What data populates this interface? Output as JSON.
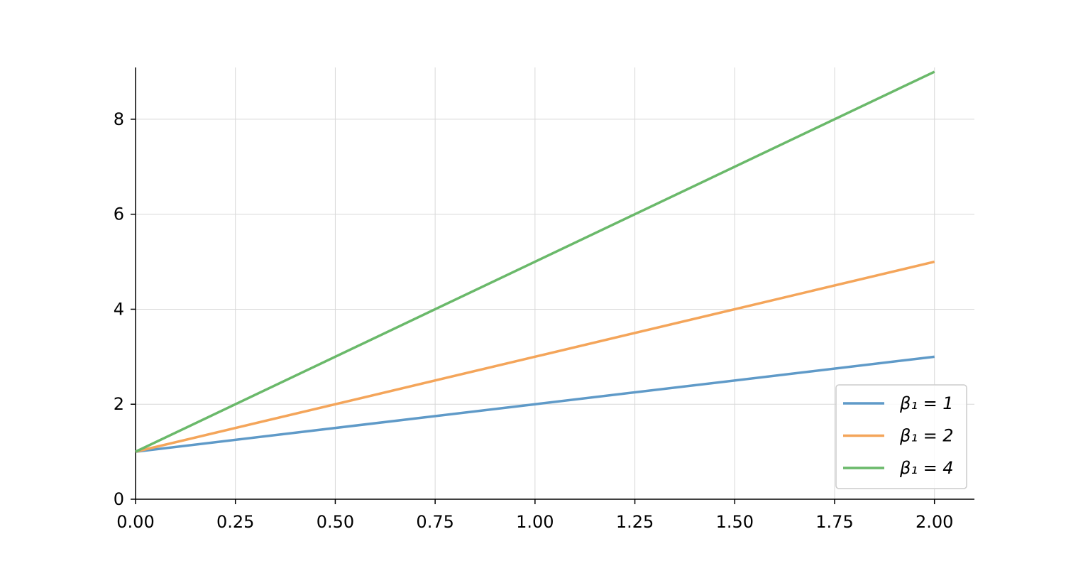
{
  "chart_data": {
    "type": "line",
    "x": [
      0,
      1,
      2
    ],
    "series": [
      {
        "name": "β₁ = 1",
        "color": "#5f9ac8",
        "values": [
          1,
          2,
          3
        ]
      },
      {
        "name": "β₁ = 2",
        "color": "#f4a55a",
        "values": [
          1,
          3,
          5
        ]
      },
      {
        "name": "β₁ = 4",
        "color": "#6ab96a",
        "values": [
          1,
          5,
          9
        ]
      }
    ],
    "xlim": [
      0,
      2.1
    ],
    "ylim": [
      0,
      9.09
    ],
    "xticks": [
      {
        "value": 0,
        "label": "0.00"
      },
      {
        "value": 0.25,
        "label": "0.25"
      },
      {
        "value": 0.5,
        "label": "0.50"
      },
      {
        "value": 0.75,
        "label": "0.75"
      },
      {
        "value": 1,
        "label": "1.00"
      },
      {
        "value": 1.25,
        "label": "1.25"
      },
      {
        "value": 1.5,
        "label": "1.50"
      },
      {
        "value": 1.75,
        "label": "1.75"
      },
      {
        "value": 2,
        "label": "2.00"
      }
    ],
    "yticks": [
      0,
      2,
      4,
      6,
      8
    ],
    "grid": true,
    "legend": "lower right"
  }
}
